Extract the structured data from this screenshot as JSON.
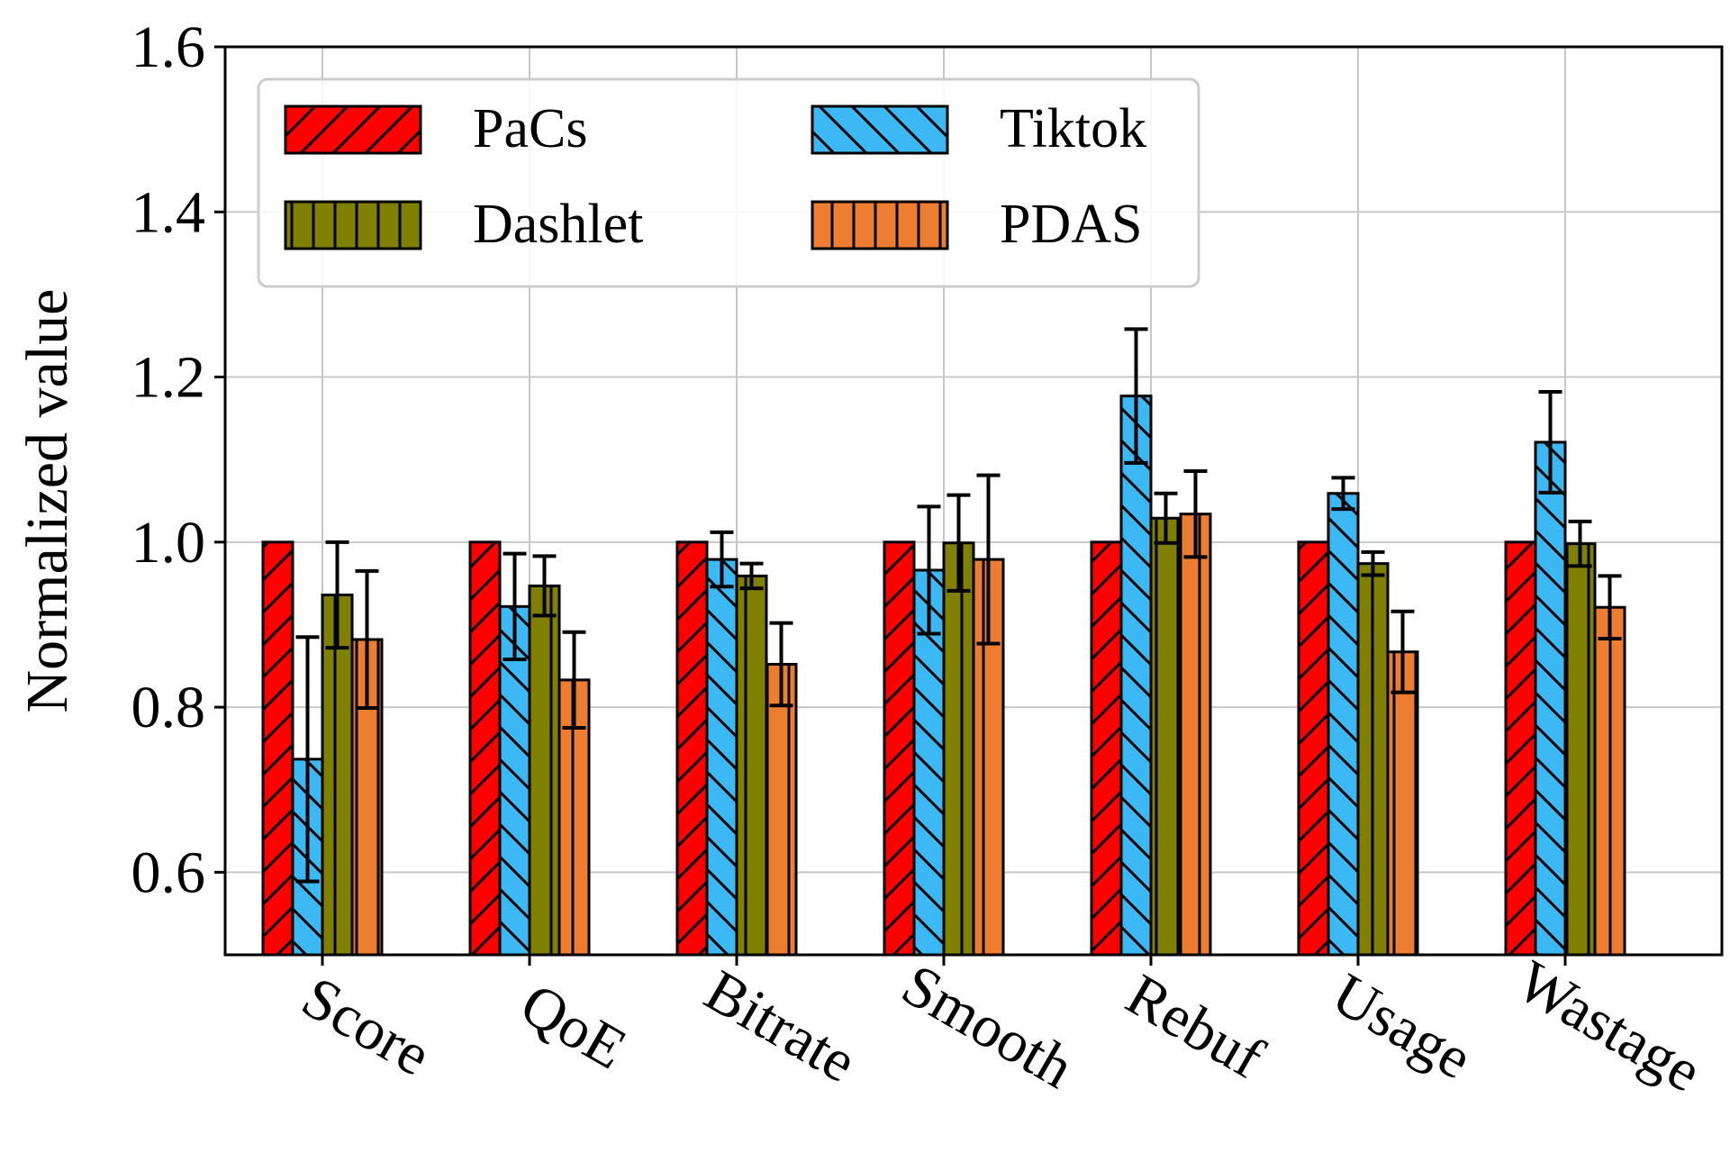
{
  "chart_data": {
    "type": "bar",
    "title": "",
    "xlabel": "",
    "ylabel": "Normalized value",
    "ylim": [
      0.5,
      1.6
    ],
    "yticks": [
      0.6,
      0.8,
      1.0,
      1.2,
      1.4,
      1.6
    ],
    "ytick_labels": [
      "0.6",
      "0.8",
      "1.0",
      "1.2",
      "1.4",
      "1.6"
    ],
    "grid": true,
    "legend_position": "top-left",
    "categories": [
      "Score",
      "QoE",
      "Bitrate",
      "Smooth",
      "Rebuf",
      "Usage",
      "Wastage"
    ],
    "series": [
      {
        "name": "PaCs",
        "color": "#ff0000",
        "hatch": "diag-forward",
        "values": [
          1.0,
          1.0,
          1.0,
          1.0,
          1.0,
          1.0,
          1.0
        ],
        "errors": [
          0,
          0,
          0,
          0,
          0,
          0,
          0
        ]
      },
      {
        "name": "Tiktok",
        "color": "#3cb8f5",
        "hatch": "diag-backward",
        "values": [
          0.737,
          0.922,
          0.979,
          0.966,
          1.177,
          1.059,
          1.121
        ],
        "errors": [
          0.148,
          0.064,
          0.033,
          0.077,
          0.081,
          0.019,
          0.061
        ]
      },
      {
        "name": "Dashlet",
        "color": "#808000",
        "hatch": "vertical",
        "values": [
          0.936,
          0.947,
          0.959,
          0.999,
          1.029,
          0.974,
          0.998
        ],
        "errors": [
          0.064,
          0.036,
          0.015,
          0.058,
          0.03,
          0.014,
          0.027
        ]
      },
      {
        "name": "PDAS",
        "color": "#ed7d31",
        "hatch": "vertical",
        "values": [
          0.882,
          0.833,
          0.852,
          0.979,
          1.034,
          0.867,
          0.921
        ],
        "errors": [
          0.083,
          0.058,
          0.05,
          0.102,
          0.052,
          0.049,
          0.038
        ]
      }
    ]
  }
}
